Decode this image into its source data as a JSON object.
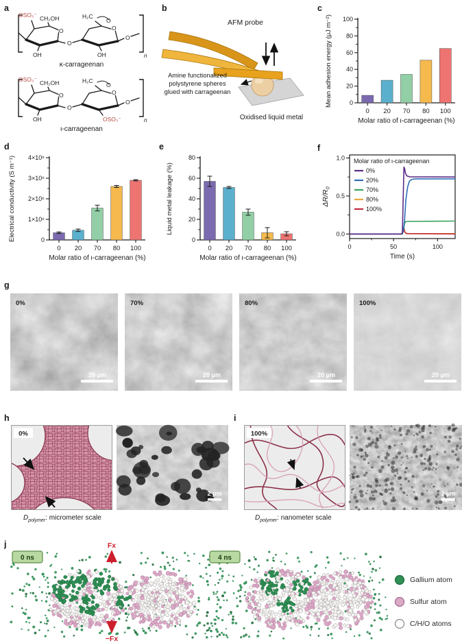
{
  "panel_letters": {
    "a": "a",
    "b": "b",
    "c": "c",
    "d": "d",
    "e": "e",
    "f": "f",
    "g": "g",
    "h": "h",
    "i": "i",
    "j": "j"
  },
  "panel_a": {
    "labels": {
      "oso3": "OSO₃⁻",
      "ch2oh": "CH₂OH",
      "h2c": "H₂C",
      "o": "O",
      "oh": "OH",
      "n": "n"
    },
    "kappa_caption": "κ-carrageenan",
    "iota_caption": "ι-carrageenan"
  },
  "panel_b": {
    "probe_label": "AFM probe",
    "sphere_caption_lines": [
      "Amine functionalized",
      "polystyrene spheres",
      "glued with carrageenan"
    ],
    "substrate_label": "Oxidised liquid metal"
  },
  "panel_g": {
    "images": [
      {
        "tag": "0%",
        "scalebar": "20 μm"
      },
      {
        "tag": "70%",
        "scalebar": "20 μm"
      },
      {
        "tag": "80%",
        "scalebar": "20 μm"
      },
      {
        "tag": "100%",
        "scalebar": "20 μm"
      }
    ]
  },
  "panel_h": {
    "tag": "0%",
    "caption_symbol": "D",
    "caption_sub": "polymer",
    "caption_text": ": micrometer scale",
    "scalebar": "2 μm"
  },
  "panel_i": {
    "tag": "100%",
    "caption_symbol": "D",
    "caption_sub": "polymer",
    "caption_text": ": nanometer scale",
    "scalebar": "2 μm"
  },
  "panel_j": {
    "left_tag": "0 ns",
    "right_tag": "4 ns",
    "force_top": "Fx",
    "force_bottom": "−Fx",
    "legend": [
      {
        "label": "Gallium atom",
        "color": "#2f8f55"
      },
      {
        "label": "Sulfur atom",
        "color": "#d9a9c6"
      },
      {
        "label": "C/H/O atoms",
        "color": "#ffffff"
      }
    ]
  },
  "chart_data": [
    {
      "id": "chart-c",
      "type": "bar",
      "panel": "c",
      "title": "",
      "categories": [
        "0",
        "20",
        "70",
        "80",
        "100"
      ],
      "values": [
        9,
        27,
        34,
        51,
        65
      ],
      "bar_colors": [
        "#7b6ab0",
        "#5bb0cd",
        "#92cfa6",
        "#f5b94e",
        "#ee7472"
      ],
      "xlabel": "Molar ratio of ι-carrageenan (%)",
      "ylabel": "Mean adhesion energy (μJ m⁻²)",
      "ylim": [
        0,
        100
      ],
      "yticks": [
        0,
        20,
        40,
        60,
        80,
        100
      ],
      "ytick_labels": [
        "0",
        "20",
        "40",
        "60",
        "80",
        "100"
      ]
    },
    {
      "id": "chart-d",
      "type": "bar",
      "panel": "d",
      "title": "",
      "categories": [
        "0",
        "20",
        "70",
        "80",
        "100"
      ],
      "values": [
        0.35,
        0.47,
        1.55,
        2.6,
        2.9
      ],
      "errors": [
        0.04,
        0.06,
        0.14,
        0.05,
        0.03
      ],
      "values_scale": "×10⁶",
      "bar_colors": [
        "#7b6ab0",
        "#5bb0cd",
        "#92cfa6",
        "#f5b94e",
        "#ee7472"
      ],
      "xlabel": "Molar ratio of ι-carrageenan (%)",
      "ylabel": "Electrical conductivity (S m⁻¹)",
      "ylim": [
        0,
        4
      ],
      "yticks": [
        0,
        1,
        2,
        3,
        4
      ],
      "ytick_labels": [
        "0",
        "1×10⁶",
        "2×10⁶",
        "3×10⁶",
        "4×10⁶"
      ]
    },
    {
      "id": "chart-e",
      "type": "bar",
      "panel": "e",
      "title": "",
      "categories": [
        "0",
        "20",
        "70",
        "80",
        "100"
      ],
      "values": [
        57,
        51,
        27,
        7,
        6
      ],
      "errors": [
        5,
        1,
        3,
        5,
        2
      ],
      "bar_colors": [
        "#7b6ab0",
        "#5bb0cd",
        "#92cfa6",
        "#f5b94e",
        "#ee7472"
      ],
      "xlabel": "Molar ratio of ι-carrageenan (%)",
      "ylabel": "Liquid metal leakage (%)",
      "ylim": [
        0,
        80
      ],
      "yticks": [
        0,
        20,
        40,
        60,
        80
      ],
      "ytick_labels": [
        "0",
        "20",
        "40",
        "60",
        "80"
      ]
    },
    {
      "id": "chart-f",
      "type": "line",
      "panel": "f",
      "title": "",
      "xlabel": "Time (s)",
      "ylabel": "ΔR/R",
      "ylabel_sub": "0",
      "xlim": [
        0,
        120
      ],
      "ylim": [
        -0.06,
        1.04
      ],
      "xticks": [
        0,
        50,
        100
      ],
      "xtick_labels": [
        "0",
        "50",
        "100"
      ],
      "yticks": [
        0,
        0.5,
        1
      ],
      "ytick_labels": [
        "0.0",
        "0.5",
        "1.0"
      ],
      "legend_title": "Molar ratio of ι-carrageenan",
      "legend_position": "top-left",
      "series": [
        {
          "name": "0%",
          "color": "#5a2a86",
          "points": [
            [
              0,
              0
            ],
            [
              58,
              0
            ],
            [
              60,
              0.01
            ],
            [
              61,
              0.5
            ],
            [
              61.8,
              0.88
            ],
            [
              62.6,
              0.86
            ],
            [
              63.5,
              0.8
            ],
            [
              65,
              0.765
            ],
            [
              68,
              0.752
            ],
            [
              120,
              0.75
            ]
          ]
        },
        {
          "name": "20%",
          "color": "#2e6db6",
          "points": [
            [
              0,
              0
            ],
            [
              59.5,
              0
            ],
            [
              61,
              0.03
            ],
            [
              62.5,
              0.18
            ],
            [
              64,
              0.45
            ],
            [
              66,
              0.62
            ],
            [
              68,
              0.695
            ],
            [
              71,
              0.72
            ],
            [
              75,
              0.725
            ],
            [
              120,
              0.725
            ]
          ]
        },
        {
          "name": "70%",
          "color": "#3aa25a",
          "points": [
            [
              0,
              0
            ],
            [
              60,
              0
            ],
            [
              61.5,
              0.06
            ],
            [
              62.5,
              0.14
            ],
            [
              64,
              0.165
            ],
            [
              120,
              0.17
            ]
          ]
        },
        {
          "name": "80%",
          "color": "#e8a93c",
          "points": [
            [
              0,
              0
            ],
            [
              59.5,
              0
            ],
            [
              61,
              0.08
            ],
            [
              62.5,
              0.03
            ],
            [
              64,
              0.01
            ],
            [
              67,
              0.005
            ],
            [
              120,
              0.005
            ]
          ]
        },
        {
          "name": "100%",
          "color": "#c1293e",
          "points": [
            [
              0,
              0
            ],
            [
              60,
              0
            ],
            [
              61.5,
              0.09
            ],
            [
              63,
              0.02
            ],
            [
              65,
              0.005
            ],
            [
              120,
              0
            ]
          ]
        }
      ]
    }
  ]
}
